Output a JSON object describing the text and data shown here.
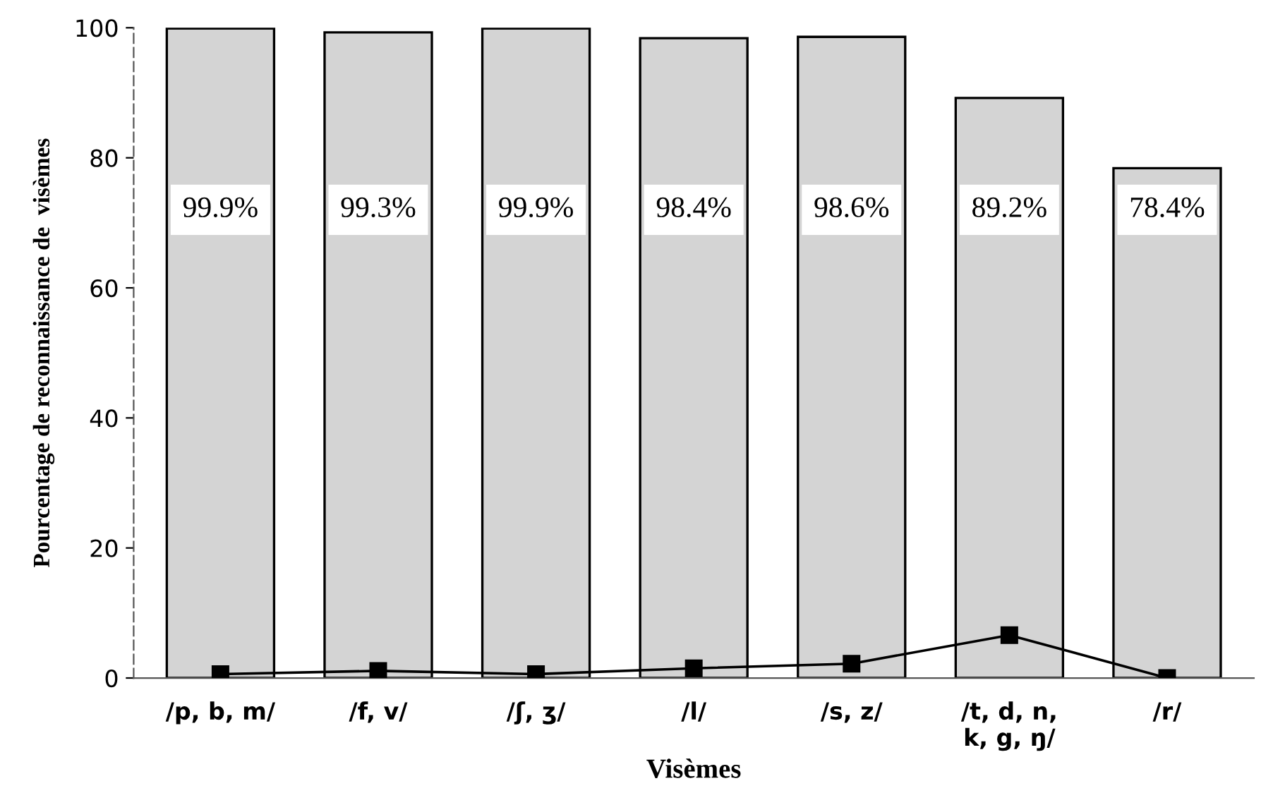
{
  "chart_data": {
    "type": "bar",
    "xlabel": "Visèmes",
    "ylabel": "Pourcentage de reconnaissance de  visèmes",
    "categories": [
      "/p, b, m/",
      "/f, v/",
      "/ʃ, ʒ/",
      "/l/",
      "/s, z/",
      "/t, d, n,\nk, g, ŋ/",
      "/r/"
    ],
    "series": [
      {
        "color": "#d4d4d4",
        "values": [
          99.9,
          99.3,
          99.9,
          98.4,
          98.6,
          89.2,
          78.4
        ],
        "value_labels": [
          "99.9%",
          "99.3%",
          "99.9%",
          "98.4%",
          "98.6%",
          "89.2%",
          "78.4%"
        ]
      },
      {
        "type": "line",
        "color": "#000000",
        "marker": "square",
        "values": [
          0.6,
          1.1,
          0.6,
          1.5,
          2.2,
          6.6,
          0
        ]
      }
    ],
    "ylim": [
      0,
      100
    ],
    "yticks": [
      0,
      20,
      40,
      60,
      80,
      100
    ],
    "grid": false,
    "legend": false
  }
}
